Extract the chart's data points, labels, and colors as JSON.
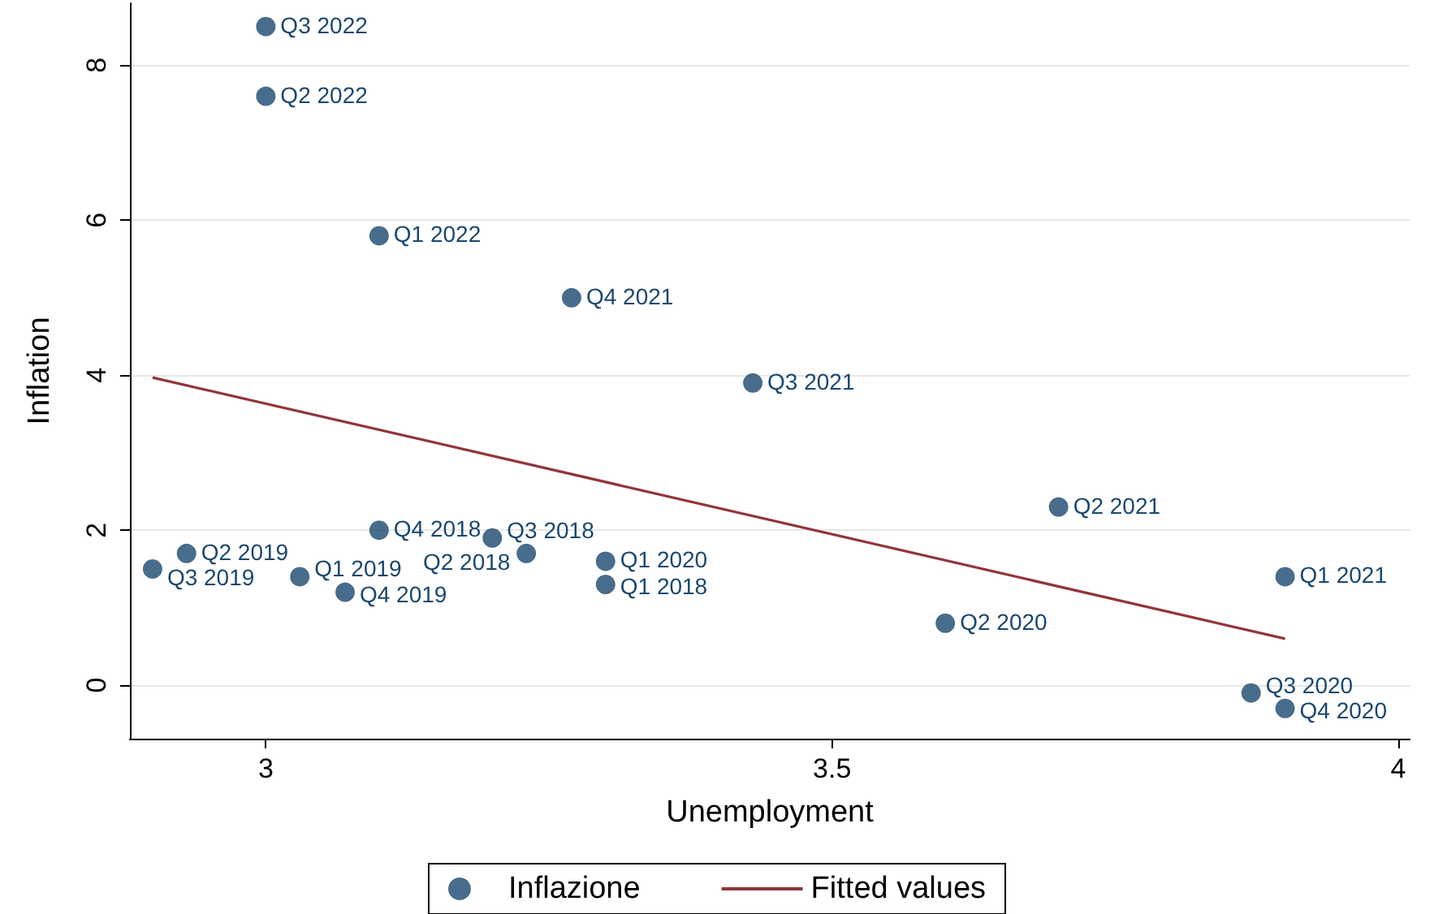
{
  "chart_data": {
    "type": "scatter",
    "xlabel": "Unemployment",
    "ylabel": "Inflation",
    "xlim": [
      2.88,
      4.01
    ],
    "ylim": [
      -0.69,
      8.8
    ],
    "xticks": [
      3,
      3.5,
      4
    ],
    "yticks": [
      0,
      2,
      4,
      6,
      8
    ],
    "grid": "y",
    "legend": "bottom",
    "marker": "circle",
    "series": [
      {
        "name": "Inflazione",
        "color": "#1a476f",
        "x": [
          3.0,
          3.0,
          3.1,
          3.27,
          3.43,
          3.7,
          3.9,
          3.6,
          3.87,
          3.9,
          3.1,
          3.2,
          3.23,
          3.3,
          3.3,
          2.93,
          2.9,
          3.03,
          3.07
        ],
        "values": [
          8.5,
          7.6,
          5.8,
          5.0,
          3.9,
          2.3,
          1.4,
          0.8,
          -0.1,
          -0.3,
          2.0,
          1.9,
          1.7,
          1.6,
          1.3,
          1.7,
          1.5,
          1.4,
          1.2
        ]
      },
      {
        "name": "Fitted values",
        "type": "line",
        "color": "#90353b",
        "x": [
          2.9,
          3.9
        ],
        "values": [
          3.97,
          0.6
        ],
        "marker": "none"
      }
    ],
    "annotations": [
      {
        "text": "Q3 2022",
        "x": 3.0,
        "y": 8.5
      },
      {
        "text": "Q2 2022",
        "x": 3.0,
        "y": 7.6
      },
      {
        "text": "Q1 2022",
        "x": 3.1,
        "y": 5.8
      },
      {
        "text": "Q4 2021",
        "x": 3.27,
        "y": 5.0
      },
      {
        "text": "Q3 2021",
        "x": 3.43,
        "y": 3.9
      },
      {
        "text": "Q2 2021",
        "x": 3.7,
        "y": 2.3
      },
      {
        "text": "Q1 2021",
        "x": 3.9,
        "y": 1.4
      },
      {
        "text": "Q2 2020",
        "x": 3.6,
        "y": 0.8
      },
      {
        "text": "Q3 2020",
        "x": 3.87,
        "y": -0.1
      },
      {
        "text": "Q4 2020",
        "x": 3.9,
        "y": -0.3
      },
      {
        "text": "Q4 2018",
        "x": 3.1,
        "y": 2.0
      },
      {
        "text": "Q3 2018",
        "x": 3.2,
        "y": 1.9
      },
      {
        "text": "Q2 2018",
        "x": 3.23,
        "y": 1.7
      },
      {
        "text": "Q1 2020",
        "x": 3.3,
        "y": 1.6
      },
      {
        "text": "Q1 2018",
        "x": 3.3,
        "y": 1.3
      },
      {
        "text": "Q2 2019",
        "x": 2.93,
        "y": 1.7
      },
      {
        "text": "Q3 2019",
        "x": 2.9,
        "y": 1.5
      },
      {
        "text": "Q1 2019",
        "x": 3.03,
        "y": 1.4
      },
      {
        "text": "Q4 2019",
        "x": 3.07,
        "y": 1.2
      }
    ]
  }
}
